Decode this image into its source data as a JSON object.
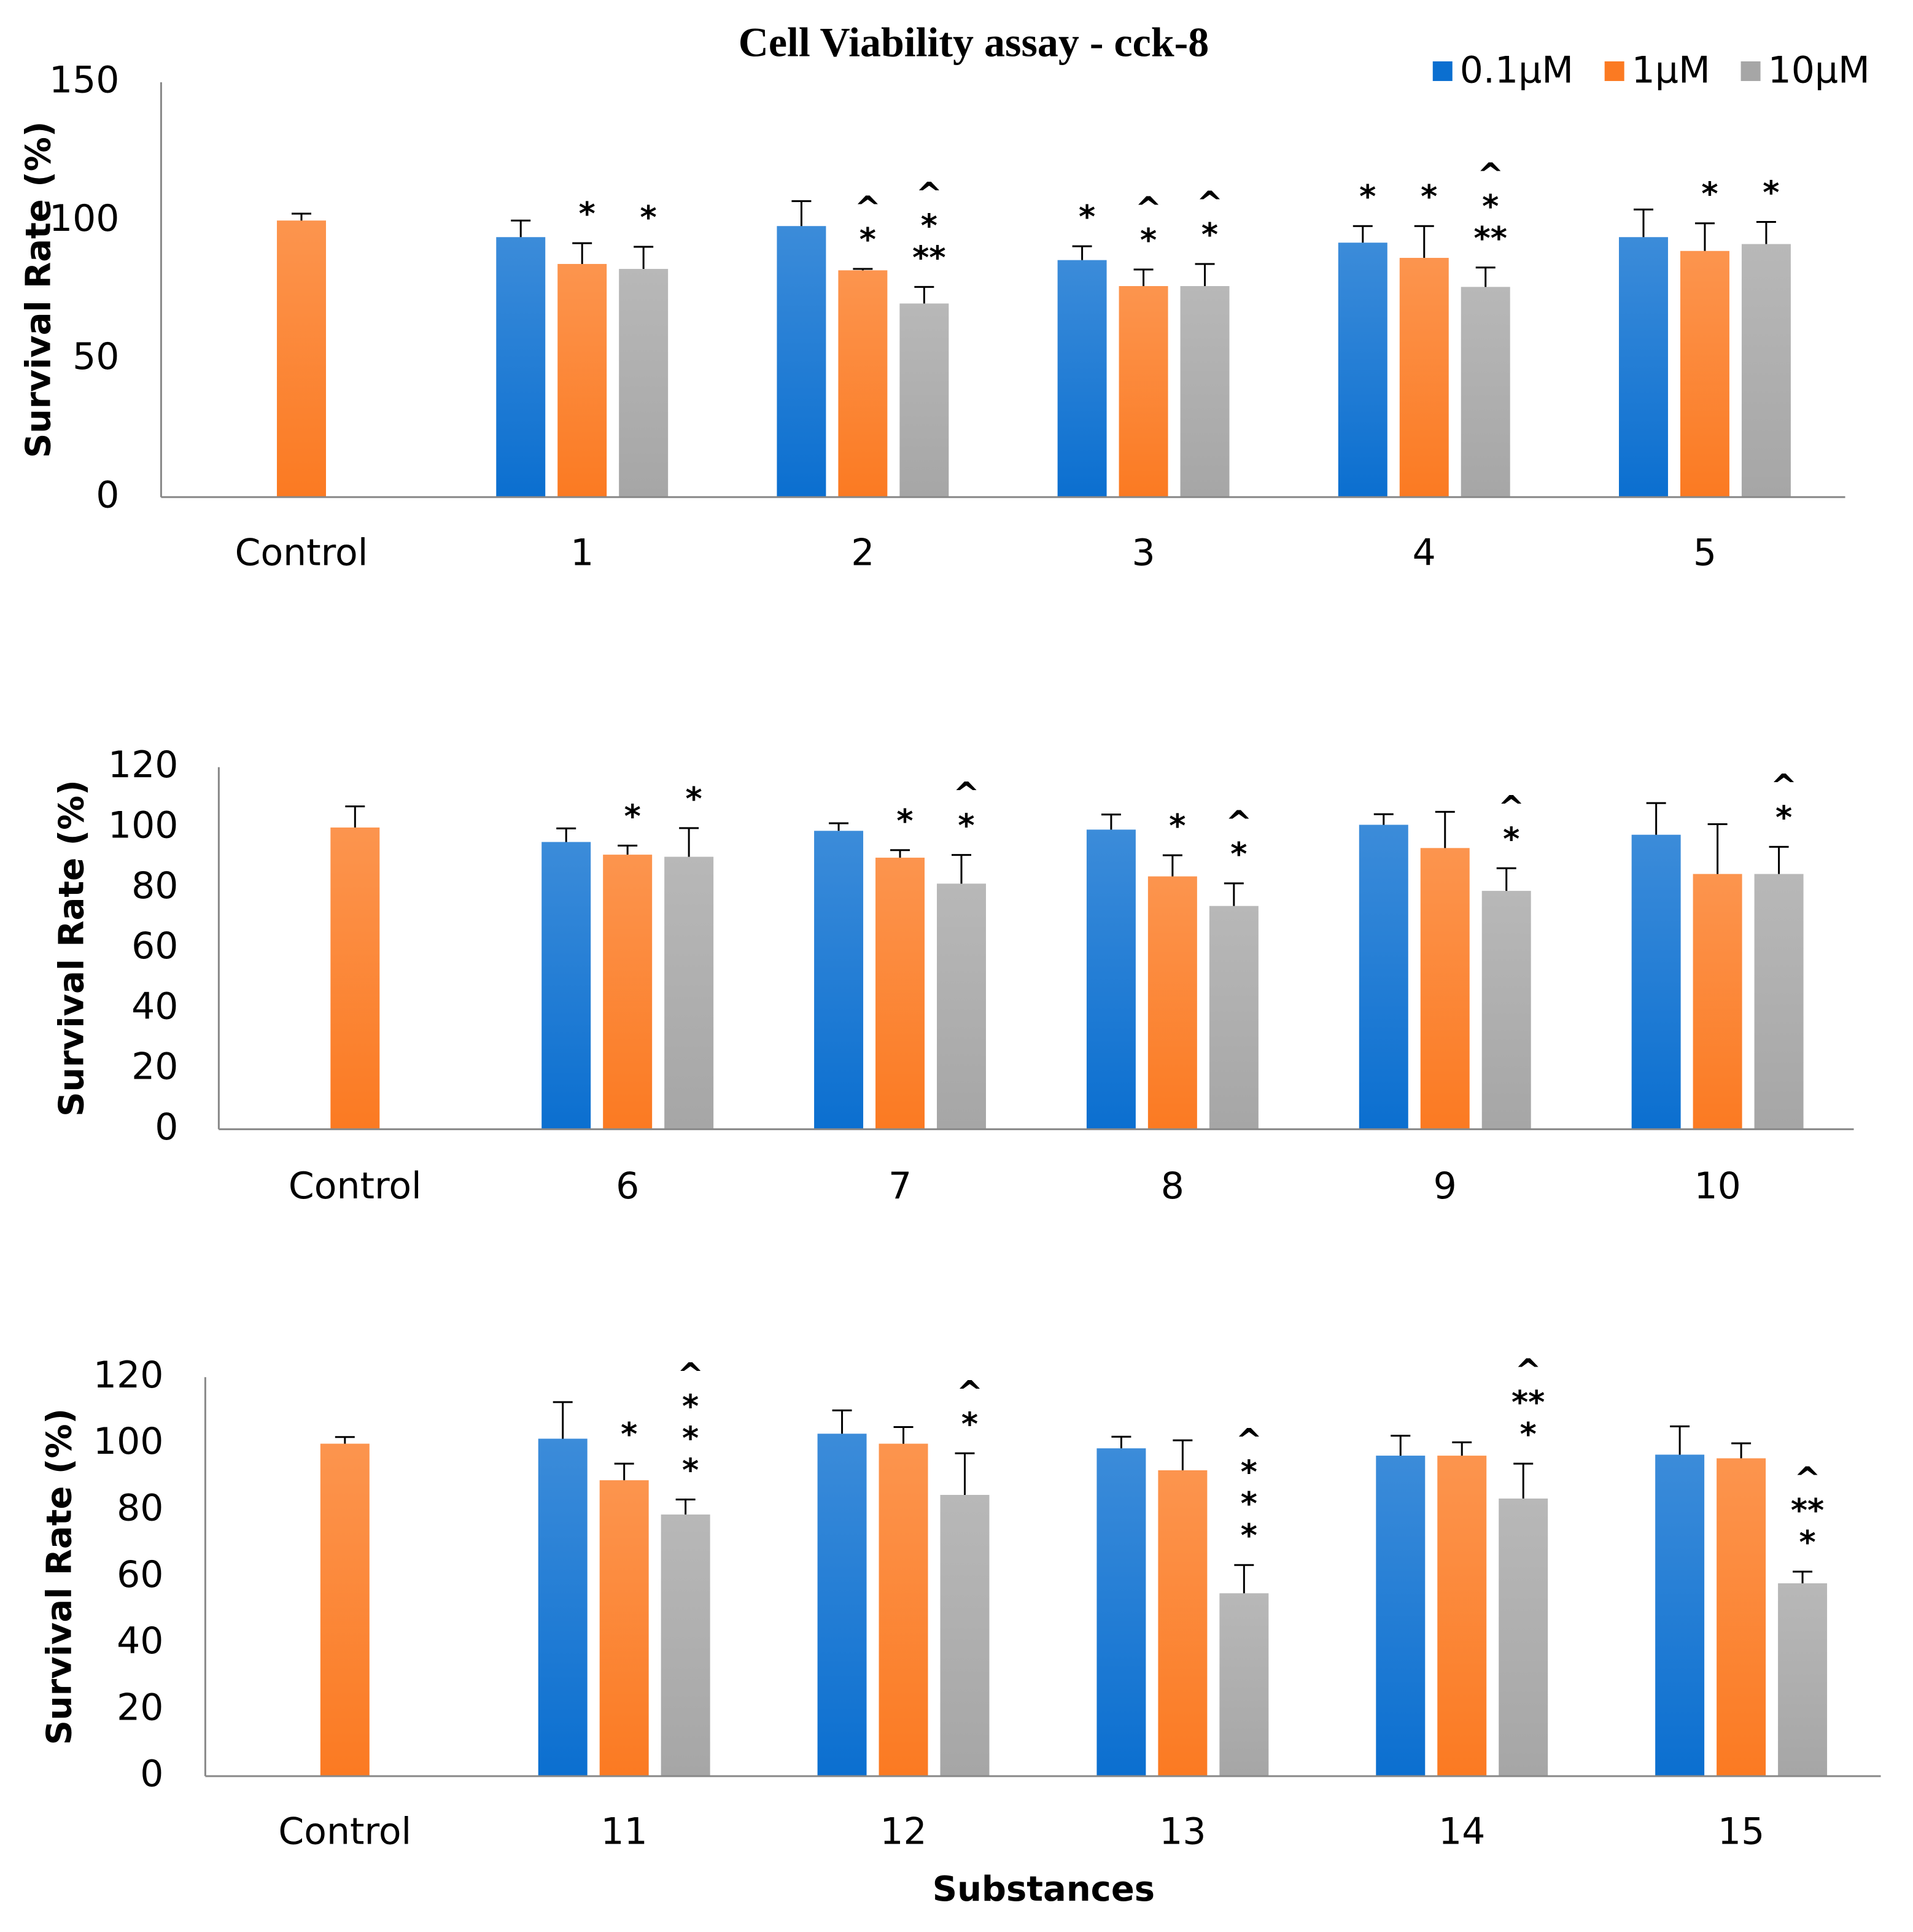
{
  "chart_data": [
    {
      "type": "bar",
      "title": "Cell Viability assay - cck-8",
      "ylabel": "Survival Rate (%)",
      "categories": [
        "Control",
        "1",
        "2",
        "3",
        "4",
        "5"
      ],
      "ylim": [
        0,
        150
      ],
      "yticks": [
        0,
        50,
        100,
        150
      ],
      "legend": "top-right",
      "series": [
        {
          "name": "0.1µM",
          "color": "#0b6fd0",
          "values": [
            null,
            94,
            98,
            85.7,
            92,
            94
          ],
          "errors": [
            null,
            6,
            9,
            5,
            6,
            10
          ],
          "annotations": [
            null,
            null,
            null,
            [
              "*"
            ],
            [
              "*"
            ],
            null
          ]
        },
        {
          "name": "1µM",
          "color": "#fb7a22",
          "values": [
            100,
            84.3,
            82,
            76.3,
            86.5,
            89
          ],
          "errors": [
            2.5,
            7.5,
            0.5,
            6,
            11.5,
            10
          ],
          "annotations": [
            null,
            [
              "*"
            ],
            [
              "^",
              "*"
            ],
            [
              "^",
              "*"
            ],
            [
              "*"
            ],
            [
              "*"
            ]
          ]
        },
        {
          "name": "10µM",
          "color": "#a6a6a6",
          "values": [
            null,
            82.5,
            70,
            76.3,
            76,
            91.5
          ],
          "errors": [
            null,
            8,
            6,
            8,
            7,
            8
          ],
          "annotations": [
            null,
            [
              "*"
            ],
            [
              "^",
              "*",
              "**"
            ],
            [
              "^",
              "*"
            ],
            [
              "^",
              "*",
              "**"
            ],
            [
              "*"
            ]
          ]
        }
      ]
    },
    {
      "type": "bar",
      "ylabel": "Survival Rate (%)",
      "categories": [
        "Control",
        "6",
        "7",
        "8",
        "9",
        "10"
      ],
      "ylim": [
        0,
        120
      ],
      "yticks": [
        0,
        20,
        40,
        60,
        80,
        100,
        120
      ],
      "series": [
        {
          "color": "#0b6fd0",
          "values": [
            null,
            95.2,
            98.9,
            99.3,
            100.9,
            97.6
          ],
          "errors": [
            null,
            4.5,
            2.5,
            5,
            3.5,
            10.5
          ],
          "annotations": [
            null,
            null,
            null,
            null,
            null,
            null
          ]
        },
        {
          "color": "#fb7a22",
          "values": [
            100,
            91,
            90,
            83.8,
            93.2,
            84.6
          ],
          "errors": [
            7,
            3,
            2.5,
            7,
            12,
            16.5
          ],
          "annotations": [
            null,
            [
              "*"
            ],
            [
              "*"
            ],
            [
              "*"
            ],
            null,
            null
          ]
        },
        {
          "color": "#a6a6a6",
          "values": [
            null,
            90.3,
            81.4,
            74,
            79,
            84.6
          ],
          "errors": [
            null,
            9.5,
            9.5,
            7.5,
            7.5,
            9
          ],
          "annotations": [
            null,
            [
              "*"
            ],
            [
              "^",
              "*"
            ],
            [
              "^",
              "*"
            ],
            [
              "^",
              "*"
            ],
            [
              "^",
              "*"
            ]
          ]
        }
      ]
    },
    {
      "type": "bar",
      "ylabel": "Survival Rate (%)",
      "xlabel": "Substances",
      "categories": [
        "Control",
        "11",
        "12",
        "13",
        "14",
        "15"
      ],
      "ylim": [
        0,
        120
      ],
      "yticks": [
        0,
        20,
        40,
        60,
        80,
        100,
        120
      ],
      "series": [
        {
          "color": "#0b6fd0",
          "values": [
            null,
            101.5,
            103,
            98.6,
            96.4,
            96.7
          ],
          "errors": [
            null,
            11,
            7,
            3.5,
            6,
            8.5
          ],
          "annotations": [
            null,
            null,
            null,
            null,
            null,
            null
          ]
        },
        {
          "color": "#fb7a22",
          "values": [
            100,
            89,
            100,
            92,
            96.4,
            95.6
          ],
          "errors": [
            2,
            5,
            5,
            9,
            4,
            4.5
          ],
          "annotations": [
            null,
            [
              "*"
            ],
            null,
            null,
            null,
            null
          ]
        },
        {
          "color": "#a6a6a6",
          "values": [
            null,
            78.7,
            84.6,
            55,
            83.5,
            58
          ],
          "errors": [
            null,
            4.5,
            12.5,
            8.5,
            10.5,
            3.5
          ],
          "annotations": [
            null,
            [
              "^",
              "*",
              "*",
              "*"
            ],
            [
              "^",
              "*"
            ],
            [
              "^",
              "*",
              "*",
              "*"
            ],
            [
              "^",
              "**",
              "*"
            ],
            [
              "^",
              "**",
              "*"
            ]
          ]
        }
      ]
    }
  ]
}
